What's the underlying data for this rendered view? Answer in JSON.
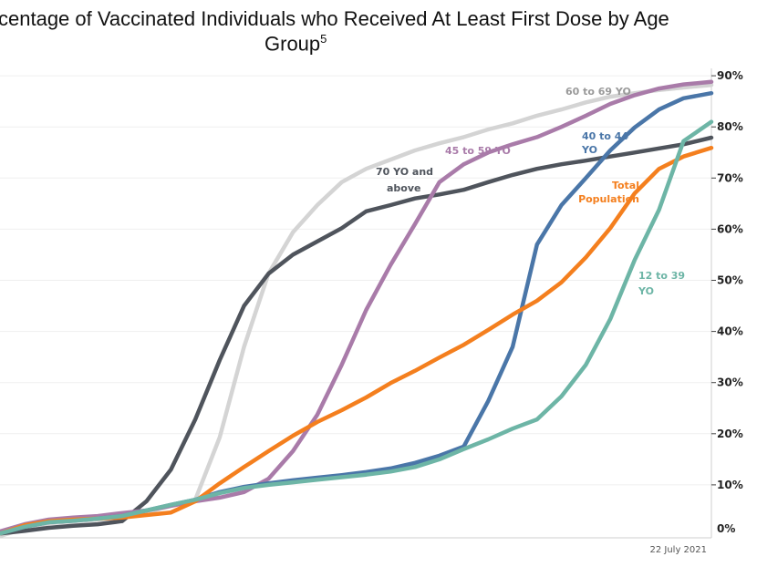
{
  "chart_data": {
    "type": "line",
    "title": "centage of Vaccinated Individuals who Received At Least First Dose by Age",
    "title_line2": "Group",
    "title_footnote": "5",
    "xlabel": "",
    "ylabel": "",
    "x_end_label": "22 July 2021",
    "ylim": [
      0,
      90
    ],
    "y_ticks": [
      "0%",
      "10%",
      "20%",
      "30%",
      "40%",
      "50%",
      "60%",
      "70%",
      "80%",
      "90%"
    ],
    "y_axis_position": "right",
    "grid": true,
    "legend": "inline labels",
    "x": [
      "2020-12-30",
      "2021-01-06",
      "2021-01-13",
      "2021-01-20",
      "2021-01-27",
      "2021-02-03",
      "2021-02-10",
      "2021-02-17",
      "2021-02-24",
      "2021-03-03",
      "2021-03-10",
      "2021-03-17",
      "2021-03-24",
      "2021-03-31",
      "2021-04-07",
      "2021-04-14",
      "2021-04-21",
      "2021-04-28",
      "2021-05-05",
      "2021-05-12",
      "2021-05-19",
      "2021-05-26",
      "2021-06-02",
      "2021-06-09",
      "2021-06-16",
      "2021-06-23",
      "2021-06-30",
      "2021-07-07",
      "2021-07-14",
      "2021-07-22"
    ],
    "series": [
      {
        "name": "60 to 69 YO",
        "color": "#d4d4d4",
        "values": [
          0,
          1.4,
          2.5,
          2.9,
          3.2,
          3.7,
          4.6,
          5.9,
          7.1,
          19.3,
          37,
          51.3,
          59.4,
          64.7,
          69.2,
          71.8,
          73.6,
          75.4,
          76.8,
          78,
          79.5,
          80.7,
          82.2,
          83.4,
          84.8,
          85.9,
          86.6,
          87.2,
          87.7,
          88.2
        ]
      },
      {
        "name": "70 YO and above",
        "color": "#4f545c",
        "values": [
          0.5,
          1,
          1.6,
          2,
          2.3,
          2.9,
          6.8,
          13,
          22.8,
          34.4,
          45,
          51.3,
          55,
          57.6,
          60.2,
          63.5,
          64.7,
          66,
          66.8,
          67.7,
          69.2,
          70.6,
          71.8,
          72.7,
          73.4,
          74.2,
          75,
          75.8,
          76.6,
          77.9
        ]
      },
      {
        "name": "45 to 59 YO",
        "color": "#a97ba9",
        "values": [
          0.9,
          2.3,
          3.2,
          3.6,
          3.9,
          4.5,
          5,
          5.9,
          6.8,
          7.5,
          8.6,
          11.2,
          16.6,
          23.7,
          33.5,
          44.2,
          53,
          61,
          69.2,
          72.7,
          75,
          76.6,
          78,
          80,
          82.2,
          84.5,
          86.2,
          87.5,
          88.3,
          88.8
        ]
      },
      {
        "name": "40 to 44 YO",
        "color": "#4a76a8",
        "values": [
          0.5,
          1.8,
          2.7,
          3,
          3.4,
          3.9,
          5,
          6.1,
          7.1,
          8.6,
          9.6,
          10.3,
          10.9,
          11.4,
          11.9,
          12.5,
          13.2,
          14.3,
          15.7,
          17.5,
          26.4,
          37,
          57,
          64.7,
          70,
          75.4,
          79.9,
          83.4,
          85.6,
          86.6
        ]
      },
      {
        "name": "Total Population",
        "color": "#f47f1e",
        "values": [
          0.5,
          2.1,
          2.9,
          3.2,
          3.4,
          3.6,
          4.1,
          4.6,
          6.8,
          10.3,
          13.5,
          16.6,
          19.6,
          22.3,
          24.6,
          27.1,
          29.9,
          32.3,
          34.9,
          37.4,
          40.3,
          43.3,
          46,
          49.6,
          54.5,
          60.2,
          67,
          71.8,
          74.2,
          75.9
        ]
      },
      {
        "name": "12 to 39 YO",
        "color": "#6db5a6",
        "values": [
          0.5,
          1.8,
          2.7,
          3,
          3.4,
          3.9,
          5,
          6.1,
          7.1,
          8.4,
          9.4,
          10,
          10.5,
          11,
          11.5,
          12,
          12.6,
          13.5,
          15,
          17,
          18.9,
          21,
          22.8,
          27.3,
          33.5,
          42.4,
          54,
          63.8,
          77.2,
          81
        ]
      }
    ],
    "annotations": [
      {
        "text": "60 to 69 YO",
        "series": "60 to 69 YO",
        "color": "#9a9a9a"
      },
      {
        "text": "45 to 59 YO",
        "series": "45 to 59 YO",
        "color": "#a97ba9"
      },
      {
        "text": "40 to 44",
        "text2": "YO",
        "series": "40 to 44 YO",
        "color": "#4a76a8"
      },
      {
        "text": "70 YO and",
        "text2": "above",
        "series": "70 YO and above",
        "color": "#4f545c"
      },
      {
        "text": "Total",
        "text2": "Population",
        "series": "Total Population",
        "color": "#f47f1e"
      },
      {
        "text": "12 to 39",
        "text2": "YO",
        "series": "12 to 39 YO",
        "color": "#6db5a6"
      }
    ]
  }
}
